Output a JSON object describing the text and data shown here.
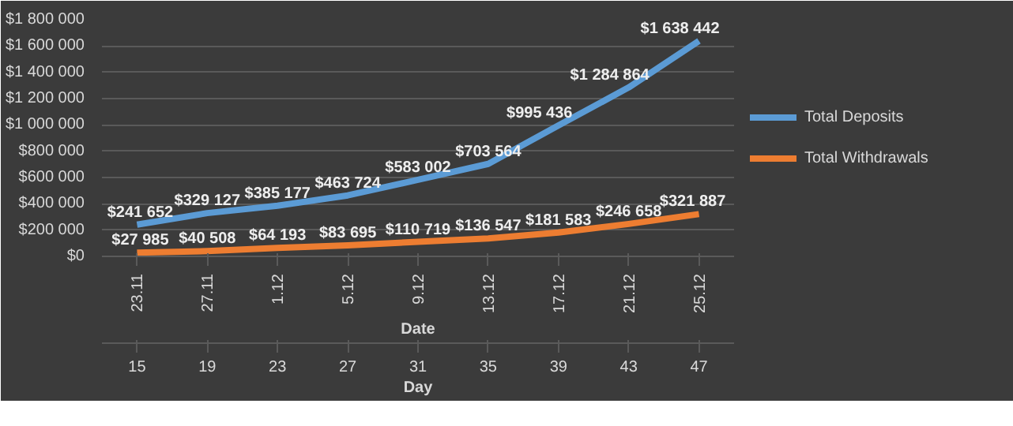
{
  "chart_data": {
    "type": "line",
    "xlabel": "Date",
    "x2label": "Day",
    "categories": [
      "23.11",
      "27.11",
      "1.12",
      "5.12",
      "9.12",
      "13.12",
      "17.12",
      "21.12",
      "25.12"
    ],
    "x2lim": [
      13,
      49
    ],
    "x2ticks": [
      15,
      19,
      23,
      27,
      31,
      35,
      39,
      43,
      47
    ],
    "ylim": [
      0,
      1800000
    ],
    "yticks": [
      {
        "value": 0,
        "label": "$0"
      },
      {
        "value": 200000,
        "label": "$200 000"
      },
      {
        "value": 400000,
        "label": "$400 000"
      },
      {
        "value": 600000,
        "label": "$600 000"
      },
      {
        "value": 800000,
        "label": "$800 000"
      },
      {
        "value": 1000000,
        "label": "$1 000 000"
      },
      {
        "value": 1200000,
        "label": "$1 200 000"
      },
      {
        "value": 1400000,
        "label": "$1 400 000"
      },
      {
        "value": 1600000,
        "label": "$1 600 000"
      },
      {
        "value": 1800000,
        "label": "$1 800 000"
      }
    ],
    "grid": "y",
    "legend": "right",
    "marker": "none",
    "line_style": "solid",
    "series": [
      {
        "name": "Total Deposits",
        "color": "#5b9bd5",
        "values": [
          241652,
          329127,
          385177,
          463724,
          583002,
          703564,
          995436,
          1284864,
          1638442
        ],
        "value_labels": [
          "$241 652",
          "$329 127",
          "$385 177",
          "$463 724",
          "$583 002",
          "$703 564",
          "$995 436",
          "$1 284 864",
          "$1 638 442"
        ]
      },
      {
        "name": "Total Withdrawals",
        "color": "#ed7d31",
        "values": [
          27985,
          40508,
          64193,
          83695,
          110719,
          136547,
          181583,
          246658,
          321887
        ],
        "value_labels": [
          "$27 985",
          "$40 508",
          "$64 193",
          "$83 695",
          "$110 719",
          "$136 547",
          "$181 583",
          "$246 658",
          "$321 887"
        ]
      }
    ]
  }
}
